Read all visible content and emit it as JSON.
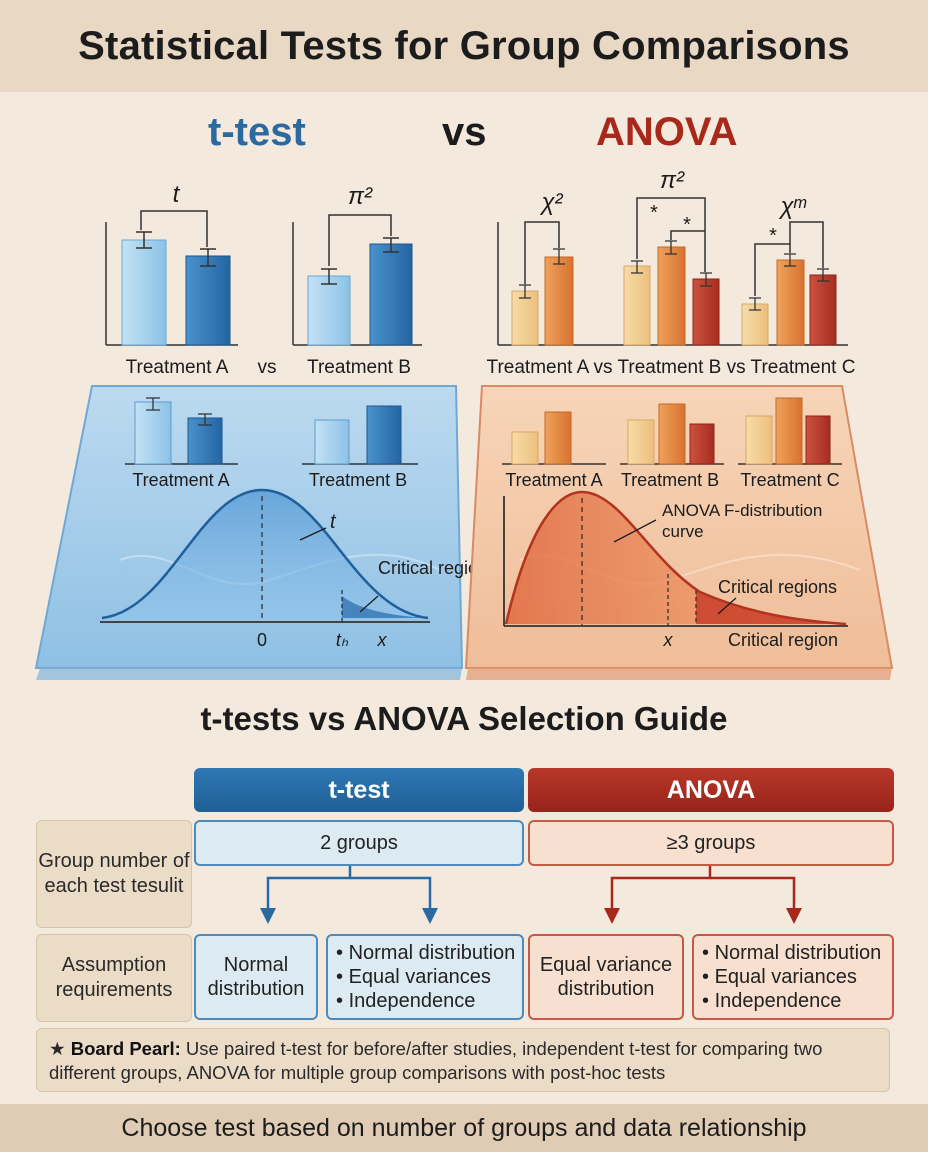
{
  "title": "Statistical Tests for Group Comparisons",
  "header": {
    "left": "t-test",
    "middle": "vs",
    "right": "ANOVA"
  },
  "colors": {
    "blue": "#2a6aa0",
    "red": "#a8281b",
    "light_blue": "#a8d3ee",
    "dark_blue": "#2f78b8",
    "light_orange": "#f3c98a",
    "orange": "#e3853f",
    "dark_red": "#b83a2b"
  },
  "top_charts": {
    "ttest_left": {
      "symbol": "t",
      "x_label": "Treatment A",
      "bar_values": [
        0.92,
        0.78
      ]
    },
    "separator": "vs",
    "ttest_right": {
      "symbol": "π²",
      "x_label": "Treatment B",
      "bar_values": [
        0.62,
        0.9
      ]
    },
    "anova": {
      "symbols": [
        "χ²",
        "π²",
        "χᵐ"
      ],
      "significance_marks": [
        "*",
        "*",
        "*"
      ],
      "x_label": "Treatment A vs Treatment B vs Treatment C",
      "groups": [
        [
          0.45,
          0.75
        ],
        [
          0.68,
          0.88,
          0.55
        ],
        [
          0.28,
          0.7,
          0.62
        ]
      ]
    }
  },
  "panels": {
    "ttest": {
      "groups": [
        "Treatment A",
        "Treatment B"
      ],
      "curve_label": "t",
      "critical_label": "Critical regions",
      "zero_label": "0",
      "t_label": "tₕ",
      "x_label": "x"
    },
    "anova": {
      "groups": [
        "Treatment A",
        "Treatment B",
        "Treatment C"
      ],
      "curve_label": "ANOVA F-distribution curve",
      "critical_regions_label": "Critical regions",
      "critical_region_label": "Critical region",
      "x_label": "x"
    }
  },
  "guide": {
    "title": "t-tests vs ANOVA Selection Guide",
    "col_ttest": "t-test",
    "col_anova": "ANOVA",
    "row1_label": "Group number of each test tesulit",
    "ttest_groups": "2 groups",
    "anova_groups": "≥3 groups",
    "row2_label": "Assumption requirements",
    "ttest_a": "Normal distribution",
    "ttest_b": [
      "Normal distribution",
      "Equal variances",
      "Independence"
    ],
    "anova_a": "Equal variance distribution",
    "anova_b": [
      "Normal distribution",
      "Equal variances",
      "Independence"
    ]
  },
  "pearl": {
    "label": "Board Pearl:",
    "text": "Use paired t-test for before/after studies, independent t-test for comparing two different groups, ANOVA for multiple group comparisons with post-hoc tests"
  },
  "footer": "Choose test based on number of groups and data relationship"
}
